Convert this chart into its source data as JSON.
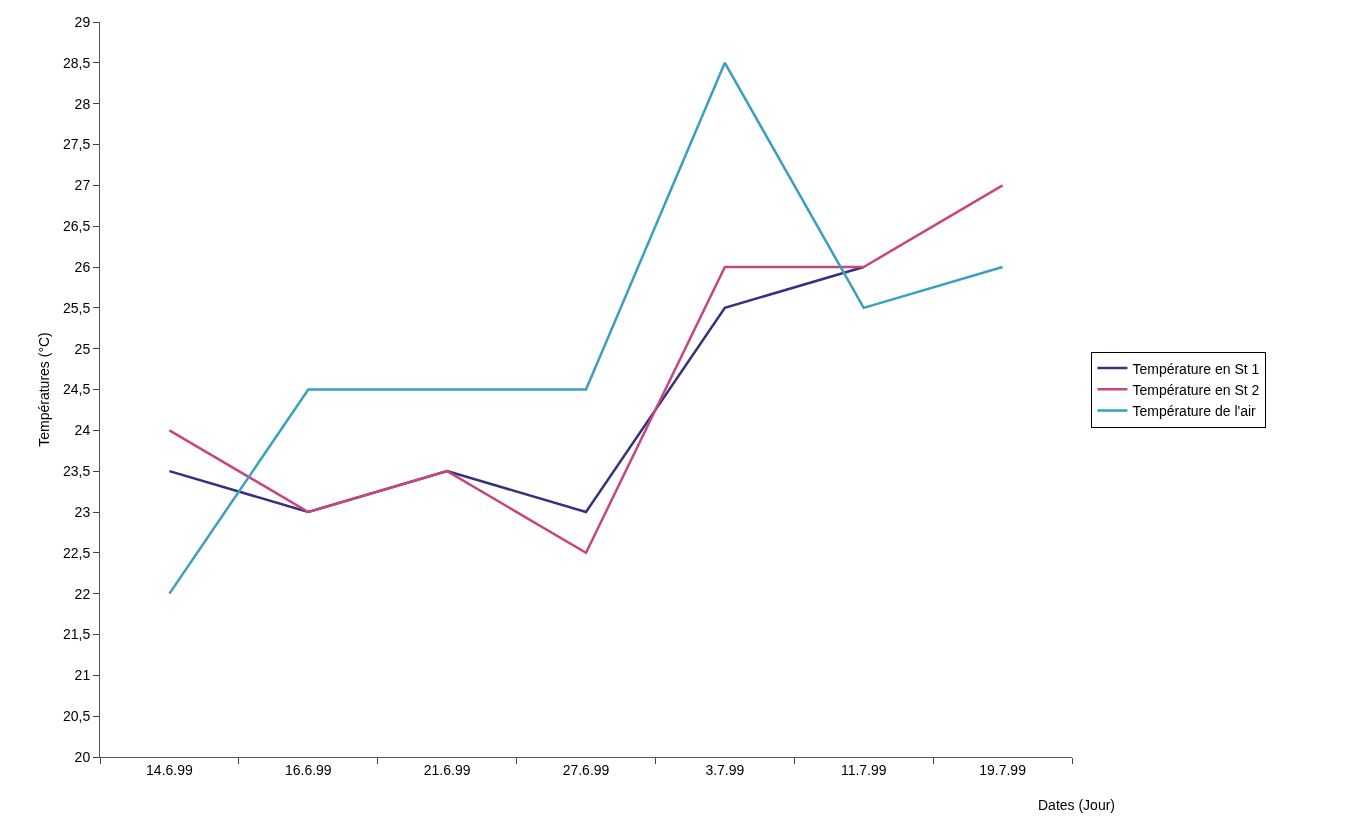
{
  "chart_data": {
    "type": "line",
    "xlabel": "Dates (Jour)",
    "ylabel": "Températures (°C)",
    "categories": [
      "14.6.99",
      "16.6.99",
      "21.6.99",
      "27.6.99",
      "3.7.99",
      "11.7.99",
      "19.7.99"
    ],
    "series": [
      {
        "name": "Température en St 1",
        "color": "#35307f",
        "values": [
          23.5,
          23,
          23.5,
          23,
          25.5,
          26,
          null
        ]
      },
      {
        "name": "Température en St 2",
        "color": "#c8467c",
        "values": [
          24,
          23,
          23.5,
          22.5,
          26,
          26,
          27
        ]
      },
      {
        "name": "Température de l'air",
        "color": "#3a9fc0",
        "values": [
          22,
          24.5,
          24.5,
          24.5,
          28.5,
          25.5,
          26
        ]
      }
    ],
    "ylim": [
      20,
      29
    ],
    "yticks": [
      20,
      {
        "value": 20.5,
        "label": "20,5"
      },
      21,
      {
        "value": 21.5,
        "label": "21,5"
      },
      22,
      {
        "value": 22.5,
        "label": "22,5"
      },
      23,
      {
        "value": 23.5,
        "label": "23,5"
      },
      24,
      {
        "value": 24.5,
        "label": "24,5"
      },
      25,
      {
        "value": 25.5,
        "label": "25,5"
      },
      26,
      {
        "value": 26.5,
        "label": "26,5"
      },
      27,
      {
        "value": 27.5,
        "label": "27,5"
      },
      28,
      {
        "value": 28.5,
        "label": "28,5"
      },
      29
    ],
    "grid": false,
    "legend": "right",
    "marker": "none",
    "line_style": "solid"
  }
}
